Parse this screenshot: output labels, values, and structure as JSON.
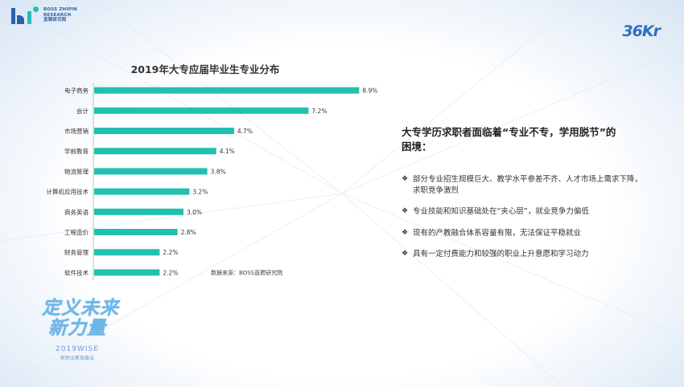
{
  "header": {
    "brand_line1": "BOSS ZHIPIN",
    "brand_line2": "RESEARCH",
    "brand_line3": "直聘研究院",
    "partner_logo": "36Kr"
  },
  "chart_data": {
    "type": "bar",
    "orientation": "horizontal",
    "title": "2019年大专应届毕业生专业分布",
    "categories": [
      "电子商务",
      "会计",
      "市场营销",
      "学前教育",
      "物流管理",
      "计算机应用技术",
      "商务英语",
      "工程造价",
      "财务管理",
      "软件技术"
    ],
    "values": [
      8.9,
      7.2,
      4.7,
      4.1,
      3.8,
      3.2,
      3.0,
      2.8,
      2.2,
      2.2
    ],
    "value_labels": [
      "8.9%",
      "7.2%",
      "4.7%",
      "4.1%",
      "3.8%",
      "3.2%",
      "3.0%",
      "2.8%",
      "2.2%",
      "2.2%"
    ],
    "xlim": [
      0,
      10
    ],
    "bar_color": "#22c0b0",
    "grid": false,
    "legend": "none",
    "xlabel": "",
    "ylabel": "",
    "source": "数据来源：BOSS直聘研究院"
  },
  "insight": {
    "headline": "大专学历求职者面临着“专业不专，学用脱节”的困境：",
    "bullet_icon": "diamond-bullet-icon",
    "bullets": [
      "部分专业招生规模巨大、教学水平参差不齐、人才市场上需求下降，求职竞争激烈",
      "专业技能和知识基础处在“夹心层”，就业竞争力偏低",
      "现有的产教融合体系容量有限，无法保证平稳就业",
      "具有一定付费能力和较强的职业上升意愿和学习动力"
    ]
  },
  "event_logo": {
    "title_line1": "定义未来",
    "title_line2": "新力量",
    "event": "2019WISE",
    "event_sub": "新职业教育峰会"
  }
}
